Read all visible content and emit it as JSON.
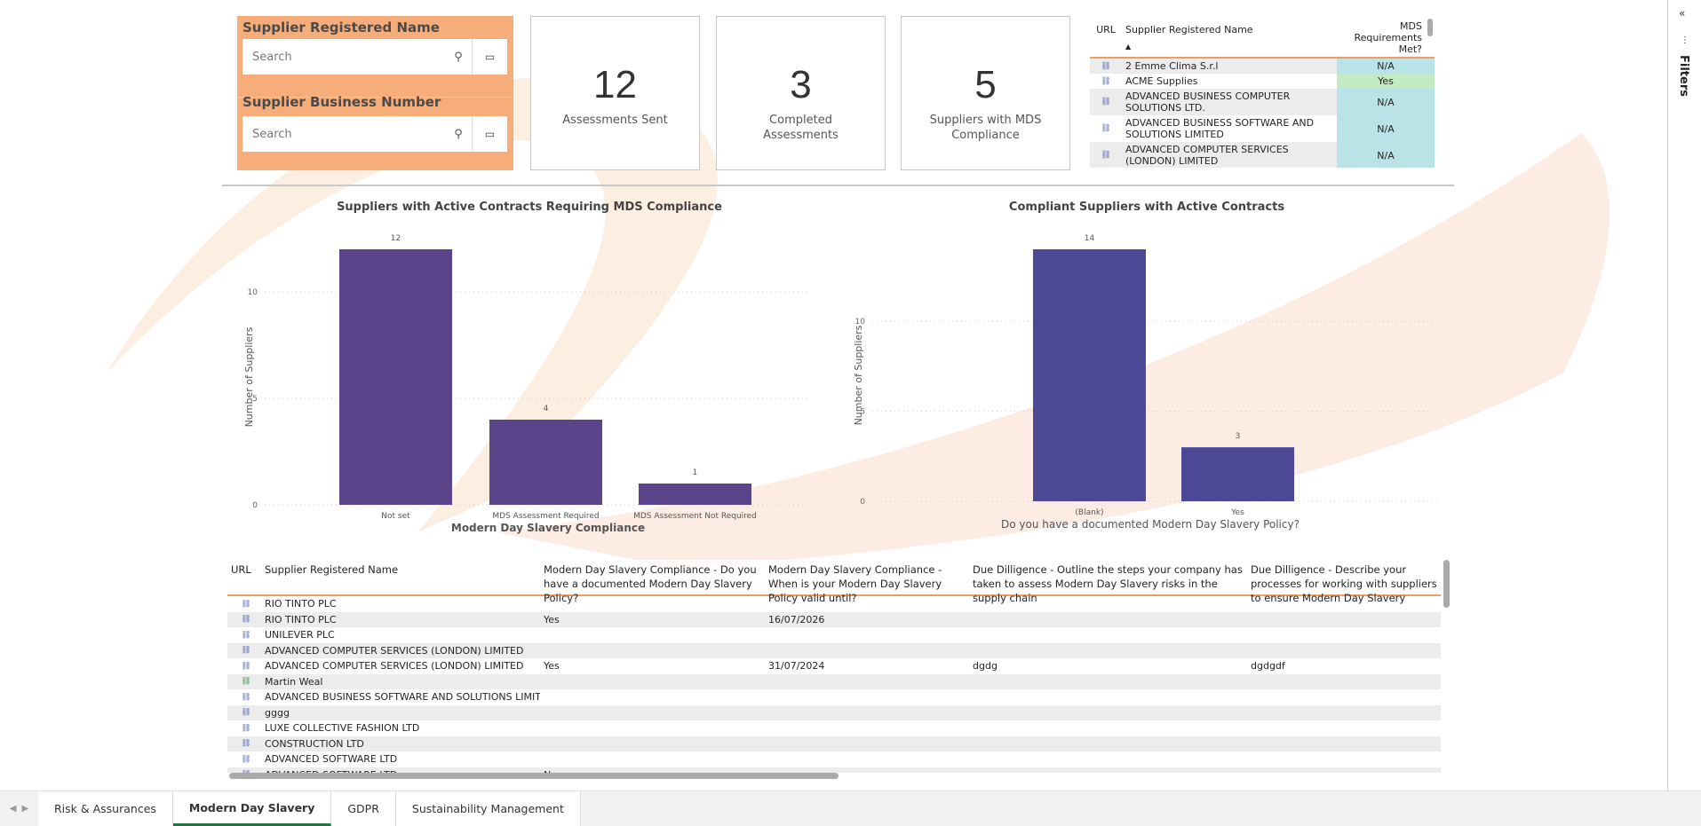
{
  "filters": {
    "name_title": "Supplier Registered Name",
    "name_placeholder": "Search",
    "number_title": "Supplier Business Number",
    "number_placeholder": "Search"
  },
  "kpis": [
    {
      "value": "12",
      "label": "Assessments Sent"
    },
    {
      "value": "3",
      "label": "Completed Assessments"
    },
    {
      "value": "5",
      "label": "Suppliers with MDS Compliance"
    }
  ],
  "top_table": {
    "headers": {
      "url": "URL",
      "name": "Supplier Registered Name",
      "mds": "MDS Requirements Met?"
    },
    "rows": [
      {
        "name": "2 Emme Clima S.r.l",
        "mds": "N/A"
      },
      {
        "name": "ACME Supplies",
        "mds": "Yes"
      },
      {
        "name": "ADVANCED BUSINESS COMPUTER SOLUTIONS LTD.",
        "mds": "N/A"
      },
      {
        "name": "ADVANCED BUSINESS SOFTWARE AND SOLUTIONS LIMITED",
        "mds": "N/A"
      },
      {
        "name": "ADVANCED COMPUTER SERVICES (LONDON) LIMITED",
        "mds": "N/A"
      }
    ],
    "colors": {
      "na": "#b9e3e6",
      "yes": "#c3ebc3"
    }
  },
  "chart_data": [
    {
      "type": "bar",
      "title": "Suppliers with Active Contracts Requiring MDS Compliance",
      "categories": [
        "Not set",
        "MDS Assessment Required",
        "MDS Assessment Not Required"
      ],
      "values": [
        12,
        4,
        1
      ],
      "xlabel": "Modern Day Slavery Compliance",
      "ylabel": "Number of Suppliers",
      "ylim": [
        0,
        12
      ],
      "yticks": [
        0,
        5,
        10
      ],
      "color": "#5b4489",
      "grid": true
    },
    {
      "type": "bar",
      "title": "Compliant Suppliers with Active Contracts",
      "categories": [
        "(Blank)",
        "Yes"
      ],
      "values": [
        14,
        3
      ],
      "xlabel": "Do you have a documented Modern Day Slavery Policy?",
      "ylabel": "Number of Suppliers",
      "ylim": [
        0,
        14
      ],
      "yticks": [
        0,
        5,
        10
      ],
      "color": "#4c4896",
      "grid": true
    }
  ],
  "bottom_table": {
    "headers": [
      "URL",
      "Supplier Registered Name",
      "Modern Day Slavery Compliance - Do you have a documented Modern Day Slavery Policy?",
      "Modern Day Slavery Compliance - When is your Modern Day Slavery Policy valid until?",
      "Due Dilligence - Outline the steps your company has taken to assess Modern Day Slavery risks in the supply chain",
      "Due Dilligence - Describe your processes for working with suppliers to ensure Modern Day Slavery"
    ],
    "rows": [
      [
        "RIO TINTO PLC",
        "",
        "",
        "",
        ""
      ],
      [
        "RIO TINTO PLC",
        "Yes",
        "16/07/2026",
        "",
        ""
      ],
      [
        "UNILEVER PLC",
        "",
        "",
        "",
        ""
      ],
      [
        "ADVANCED COMPUTER SERVICES (LONDON) LIMITED",
        "",
        "",
        "",
        ""
      ],
      [
        "ADVANCED COMPUTER SERVICES (LONDON) LIMITED",
        "Yes",
        "31/07/2024",
        "dgdg",
        "dgdgdf"
      ],
      [
        "Martin Weal",
        "",
        "",
        "",
        ""
      ],
      [
        "ADVANCED BUSINESS SOFTWARE AND SOLUTIONS LIMITED",
        "",
        "",
        "",
        ""
      ],
      [
        "gggg",
        "",
        "",
        "",
        ""
      ],
      [
        "LUXE COLLECTIVE FASHION LTD",
        "",
        "",
        "",
        ""
      ],
      [
        "CONSTRUCTION LTD",
        "",
        "",
        "",
        ""
      ],
      [
        "ADVANCED SOFTWARE LTD",
        "",
        "",
        "",
        ""
      ],
      [
        "ADVANCED SOFTWARE LTD",
        "No",
        "",
        "",
        ""
      ]
    ]
  },
  "tabs": [
    {
      "label": "Risk & Assurances",
      "active": false
    },
    {
      "label": "Modern Day Slavery",
      "active": true
    },
    {
      "label": "GDPR",
      "active": false
    },
    {
      "label": "Sustainability Management",
      "active": false
    }
  ],
  "right_pane": {
    "label": "Filters"
  }
}
